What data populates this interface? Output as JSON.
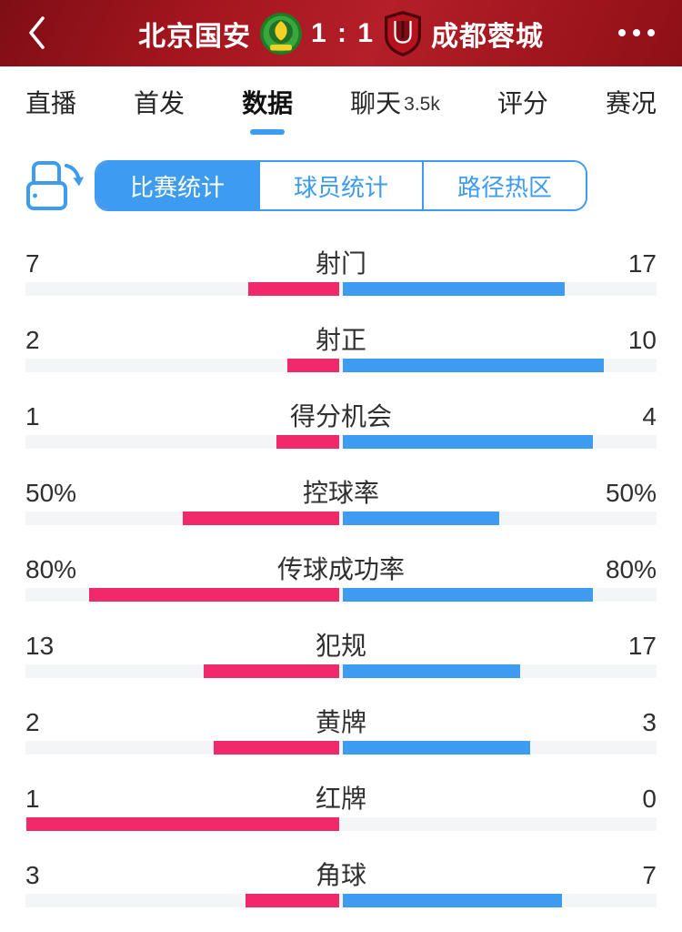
{
  "header": {
    "home_team": "北京国安",
    "score": "1 : 1",
    "away_team": "成都蓉城"
  },
  "tabs": [
    {
      "label": "直播"
    },
    {
      "label": "首发"
    },
    {
      "label": "数据"
    },
    {
      "label": "聊天",
      "badge": "3.5k"
    },
    {
      "label": "评分"
    },
    {
      "label": "赛况"
    }
  ],
  "segments": [
    {
      "label": "比赛统计"
    },
    {
      "label": "球员统计"
    },
    {
      "label": "路径热区"
    }
  ],
  "icons": {
    "back": "chevron-left-icon",
    "more": "ellipsis-icon",
    "rotate": "rotate-screen-icon",
    "home_logo": "beijing-guoan-badge",
    "away_logo": "chengdu-rongcheng-badge"
  },
  "colors": {
    "header_red": "#a5161f",
    "accent_blue": "#3d9bf0",
    "home_bar": "#f0296a",
    "away_bar": "#3d9bf0",
    "track_gray": "#f4f5f7"
  },
  "chart_data": {
    "type": "bar",
    "orientation": "horizontal-paired-from-center",
    "title": "比赛统计",
    "legend": [
      "北京国安",
      "成都蓉城"
    ],
    "legend_position": "header",
    "categories": [
      "射门",
      "射正",
      "得分机会",
      "控球率",
      "传球成功率",
      "犯规",
      "黄牌",
      "红牌",
      "角球"
    ],
    "series": [
      {
        "name": "北京国安",
        "color": "#f0296a",
        "values": [
          7,
          2,
          1,
          50,
          80,
          13,
          2,
          1,
          3
        ]
      },
      {
        "name": "成都蓉城",
        "color": "#3d9bf0",
        "values": [
          17,
          10,
          4,
          50,
          80,
          17,
          3,
          0,
          7
        ]
      }
    ],
    "rows": [
      {
        "label": "射门",
        "home": "7",
        "away": "17",
        "home_value": 7,
        "away_value": 17,
        "unit": "count"
      },
      {
        "label": "射正",
        "home": "2",
        "away": "10",
        "home_value": 2,
        "away_value": 10,
        "unit": "count"
      },
      {
        "label": "得分机会",
        "home": "1",
        "away": "4",
        "home_value": 1,
        "away_value": 4,
        "unit": "count"
      },
      {
        "label": "控球率",
        "home": "50%",
        "away": "50%",
        "home_value": 50,
        "away_value": 50,
        "unit": "percent"
      },
      {
        "label": "传球成功率",
        "home": "80%",
        "away": "80%",
        "home_value": 80,
        "away_value": 80,
        "unit": "percent"
      },
      {
        "label": "犯规",
        "home": "13",
        "away": "17",
        "home_value": 13,
        "away_value": 17,
        "unit": "count"
      },
      {
        "label": "黄牌",
        "home": "2",
        "away": "3",
        "home_value": 2,
        "away_value": 3,
        "unit": "count"
      },
      {
        "label": "红牌",
        "home": "1",
        "away": "0",
        "home_value": 1,
        "away_value": 0,
        "unit": "count"
      },
      {
        "label": "角球",
        "home": "3",
        "away": "7",
        "home_value": 3,
        "away_value": 7,
        "unit": "count"
      }
    ]
  }
}
